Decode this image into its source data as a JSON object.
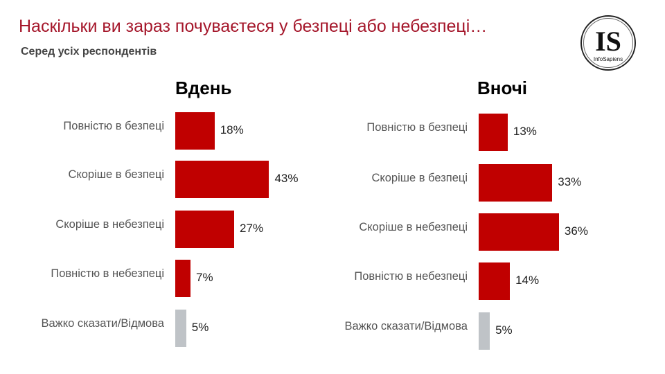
{
  "title": "Наскільки ви зараз почуваєтеся у безпеці або небезпеці…",
  "subtitle": "Серед усіх респондентів",
  "logo": {
    "text": "IS",
    "brand": "InfoSapiens"
  },
  "colors": {
    "main": "#C00000",
    "neutral": "#BFC3C7",
    "title": "#A5172B"
  },
  "chart_data": [
    {
      "type": "bar",
      "orientation": "horizontal",
      "title": "Вдень",
      "categories": [
        "Повністю в безпеці",
        "Скоріше в безпеці",
        "Скоріше в небезпеці",
        "Повністю в небезпеці",
        "Важко сказати/Відмова"
      ],
      "values": [
        18,
        43,
        27,
        7,
        5
      ],
      "labels": [
        "18%",
        "43%",
        "27%",
        "7%",
        "5%"
      ],
      "unit": "%"
    },
    {
      "type": "bar",
      "orientation": "horizontal",
      "title": "Вночі",
      "categories": [
        "Повністю в безпеці",
        "Скоріше в безпеці",
        "Скоріше в небезпеці",
        "Повністю в небезпеці",
        "Важко сказати/Відмова"
      ],
      "values": [
        13,
        33,
        36,
        14,
        5
      ],
      "labels": [
        "13%",
        "33%",
        "36%",
        "14%",
        "5%"
      ],
      "unit": "%"
    }
  ]
}
